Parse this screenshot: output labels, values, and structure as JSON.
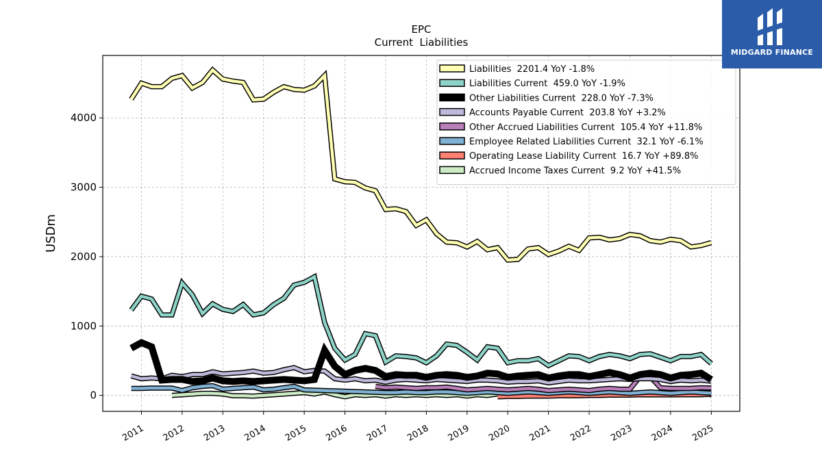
{
  "logo": {
    "text": "MIDGARD FINANCE"
  },
  "chart_data": {
    "type": "line",
    "title": "EPC",
    "subtitle": "Current  Liabilities",
    "ylabel": "USDm",
    "xlabel": "",
    "ylim": [
      -230,
      4900
    ],
    "xlim": [
      2010.05,
      2025.7
    ],
    "yticks": [
      0,
      1000,
      2000,
      3000,
      4000
    ],
    "xticks": [
      2011,
      2012,
      2013,
      2014,
      2015,
      2016,
      2017,
      2018,
      2019,
      2020,
      2021,
      2022,
      2023,
      2024,
      2025
    ],
    "grid": true,
    "legend_position": "top-right",
    "series": [
      {
        "name": "Liabilities  2201.4 YoY -1.8%",
        "color": "#ffffb3",
        "x": [
          2010.75,
          2011.0,
          2011.25,
          2011.5,
          2011.75,
          2012.0,
          2012.25,
          2012.5,
          2012.75,
          2013.0,
          2013.25,
          2013.5,
          2013.75,
          2014.0,
          2014.25,
          2014.5,
          2014.75,
          2015.0,
          2015.25,
          2015.5,
          2015.75,
          2016.0,
          2016.25,
          2016.5,
          2016.75,
          2017.0,
          2017.25,
          2017.5,
          2017.75,
          2018.0,
          2018.25,
          2018.5,
          2018.75,
          2019.0,
          2019.25,
          2019.5,
          2019.75,
          2020.0,
          2020.25,
          2020.5,
          2020.75,
          2021.0,
          2021.25,
          2021.5,
          2021.75,
          2022.0,
          2022.25,
          2022.5,
          2022.75,
          2023.0,
          2023.25,
          2023.5,
          2023.75,
          2024.0,
          2024.25,
          2024.5,
          2024.75,
          2025.0
        ],
        "values": [
          4270,
          4500,
          4450,
          4450,
          4570,
          4610,
          4430,
          4510,
          4690,
          4560,
          4530,
          4510,
          4260,
          4270,
          4370,
          4450,
          4410,
          4400,
          4460,
          4610,
          3120,
          3080,
          3070,
          2990,
          2950,
          2680,
          2690,
          2650,
          2450,
          2530,
          2330,
          2210,
          2200,
          2140,
          2220,
          2100,
          2130,
          1950,
          1960,
          2110,
          2130,
          2030,
          2080,
          2150,
          2090,
          2270,
          2280,
          2240,
          2260,
          2320,
          2300,
          2230,
          2210,
          2250,
          2230,
          2140,
          2160,
          2201.4
        ]
      },
      {
        "name": "Liabilities Current  459.0 YoY -1.9%",
        "color": "#8dd3c7",
        "x": [
          2010.75,
          2011.0,
          2011.25,
          2011.5,
          2011.75,
          2012.0,
          2012.25,
          2012.5,
          2012.75,
          2013.0,
          2013.25,
          2013.5,
          2013.75,
          2014.0,
          2014.25,
          2014.5,
          2014.75,
          2015.0,
          2015.25,
          2015.5,
          2015.75,
          2016.0,
          2016.25,
          2016.5,
          2016.75,
          2017.0,
          2017.25,
          2017.5,
          2017.75,
          2018.0,
          2018.25,
          2018.5,
          2018.75,
          2019.0,
          2019.25,
          2019.5,
          2019.75,
          2020.0,
          2020.25,
          2020.5,
          2020.75,
          2021.0,
          2021.25,
          2021.5,
          2021.75,
          2022.0,
          2022.25,
          2022.5,
          2022.75,
          2023.0,
          2023.25,
          2023.5,
          2023.75,
          2024.0,
          2024.25,
          2024.5,
          2024.75,
          2025.0
        ],
        "values": [
          1230,
          1430,
          1390,
          1160,
          1160,
          1620,
          1450,
          1180,
          1320,
          1240,
          1210,
          1310,
          1160,
          1190,
          1310,
          1400,
          1590,
          1630,
          1710,
          1050,
          680,
          510,
          590,
          890,
          860,
          480,
          570,
          560,
          540,
          470,
          570,
          740,
          720,
          620,
          510,
          700,
          680,
          470,
          500,
          500,
          530,
          430,
          500,
          570,
          560,
          500,
          560,
          590,
          570,
          530,
          590,
          600,
          550,
          500,
          560,
          560,
          590,
          459
        ]
      },
      {
        "name": "Other Liabilities Current  228.0 YoY -7.3%",
        "color": "#000000",
        "x": [
          2010.75,
          2011.0,
          2011.25,
          2011.5,
          2011.75,
          2012.0,
          2012.25,
          2012.5,
          2012.75,
          2013.0,
          2013.25,
          2013.5,
          2013.75,
          2014.0,
          2014.25,
          2014.5,
          2014.75,
          2015.0,
          2015.25,
          2015.5,
          2015.75,
          2016.0,
          2016.25,
          2016.5,
          2016.75,
          2017.0,
          2017.25,
          2017.5,
          2017.75,
          2018.0,
          2018.25,
          2018.5,
          2018.75,
          2019.0,
          2019.25,
          2019.5,
          2019.75,
          2020.0,
          2020.25,
          2020.5,
          2020.75,
          2021.0,
          2021.25,
          2021.5,
          2021.75,
          2022.0,
          2022.25,
          2022.5,
          2022.75,
          2023.0,
          2023.25,
          2023.5,
          2023.75,
          2024.0,
          2024.25,
          2024.5,
          2024.75,
          2025.0
        ],
        "values": [
          680,
          760,
          700,
          220,
          230,
          230,
          200,
          210,
          250,
          210,
          200,
          210,
          200,
          210,
          220,
          230,
          220,
          210,
          230,
          650,
          420,
          300,
          360,
          390,
          360,
          270,
          300,
          290,
          290,
          260,
          290,
          300,
          290,
          260,
          280,
          320,
          310,
          260,
          280,
          290,
          300,
          250,
          280,
          300,
          300,
          270,
          300,
          330,
          300,
          250,
          300,
          320,
          300,
          250,
          290,
          300,
          320,
          228
        ]
      },
      {
        "name": "Accounts Payable Current  203.8 YoY +3.2%",
        "color": "#bebada",
        "x": [
          2010.75,
          2011.0,
          2011.25,
          2011.5,
          2011.75,
          2012.0,
          2012.25,
          2012.5,
          2012.75,
          2013.0,
          2013.25,
          2013.5,
          2013.75,
          2014.0,
          2014.25,
          2014.5,
          2014.75,
          2015.0,
          2015.25,
          2015.5,
          2015.75,
          2016.0,
          2016.25,
          2016.5,
          2016.75,
          2017.0,
          2017.25,
          2017.5,
          2017.75,
          2018.0,
          2018.25,
          2018.5,
          2018.75,
          2019.0,
          2019.25,
          2019.5,
          2019.75,
          2020.0,
          2020.25,
          2020.5,
          2020.75,
          2021.0,
          2021.25,
          2021.5,
          2021.75,
          2022.0,
          2022.25,
          2022.5,
          2022.75,
          2023.0,
          2023.25,
          2023.5,
          2023.75,
          2024.0,
          2024.25,
          2024.5,
          2024.75,
          2025.0
        ],
        "values": [
          280,
          240,
          250,
          240,
          290,
          270,
          300,
          300,
          340,
          310,
          320,
          330,
          350,
          320,
          330,
          370,
          400,
          340,
          360,
          350,
          240,
          220,
          240,
          210,
          220,
          190,
          220,
          230,
          220,
          210,
          230,
          220,
          210,
          200,
          220,
          220,
          210,
          190,
          200,
          200,
          210,
          180,
          200,
          220,
          210,
          210,
          220,
          230,
          240,
          230,
          240,
          240,
          230,
          200,
          220,
          210,
          220,
          203.8
        ]
      },
      {
        "name": "Other Accrued Liabilities Current  105.4 YoY +11.8%",
        "color": "#b97fb9",
        "x": [
          2016.75,
          2017.0,
          2017.25,
          2017.5,
          2017.75,
          2018.0,
          2018.25,
          2018.5,
          2018.75,
          2019.0,
          2019.25,
          2019.5,
          2019.75,
          2020.0,
          2020.25,
          2020.5,
          2020.75,
          2021.0,
          2021.25,
          2021.5,
          2021.75,
          2022.0,
          2022.25,
          2022.5,
          2022.75,
          2023.0,
          2023.25,
          2023.5,
          2023.75,
          2024.0,
          2024.25,
          2024.5,
          2024.75,
          2025.0
        ],
        "values": [
          130,
          110,
          120,
          110,
          100,
          110,
          110,
          120,
          100,
          80,
          90,
          100,
          90,
          80,
          90,
          100,
          90,
          70,
          80,
          90,
          80,
          70,
          90,
          100,
          90,
          90,
          270,
          270,
          110,
          100,
          100,
          100,
          110,
          105.4
        ]
      },
      {
        "name": "Employee Related Liabilities Current  32.1 YoY -6.1%",
        "color": "#80b1d3",
        "x": [
          2010.75,
          2011.0,
          2011.25,
          2011.5,
          2011.75,
          2012.0,
          2012.25,
          2012.5,
          2012.75,
          2013.0,
          2013.25,
          2013.5,
          2013.75,
          2014.0,
          2014.25,
          2014.5,
          2014.75,
          2015.0,
          2017.0,
          2017.25,
          2017.5,
          2017.75,
          2018.0,
          2018.25,
          2018.5,
          2018.75,
          2019.0,
          2019.25,
          2019.5,
          2019.75,
          2020.0,
          2020.25,
          2020.5,
          2020.75,
          2021.0,
          2021.25,
          2021.5,
          2021.75,
          2022.0,
          2022.25,
          2022.5,
          2022.75,
          2023.0,
          2023.25,
          2023.5,
          2023.75,
          2024.0,
          2024.25,
          2024.5,
          2024.75,
          2025.0
        ],
        "values": [
          100,
          100,
          105,
          105,
          105,
          70,
          110,
          130,
          140,
          90,
          100,
          110,
          120,
          80,
          90,
          110,
          130,
          80,
          40,
          40,
          50,
          40,
          40,
          50,
          50,
          40,
          30,
          40,
          50,
          40,
          30,
          40,
          50,
          40,
          30,
          40,
          50,
          40,
          30,
          40,
          50,
          40,
          30,
          40,
          50,
          40,
          30,
          40,
          50,
          40,
          32.1
        ]
      },
      {
        "name": "Operating Lease Liability Current  16.7 YoY +89.8%",
        "color": "#fb8072",
        "x": [
          2019.75,
          2020.0,
          2020.25,
          2020.5,
          2020.75,
          2021.0,
          2021.25,
          2021.5,
          2021.75,
          2022.0,
          2022.25,
          2022.5,
          2022.75,
          2023.0,
          2023.25,
          2023.5,
          2023.75,
          2024.0,
          2024.25,
          2024.5,
          2024.75,
          2025.0
        ],
        "values": [
          -20,
          -15,
          -15,
          -10,
          -10,
          -10,
          -5,
          -5,
          -5,
          0,
          0,
          5,
          5,
          5,
          10,
          8,
          8,
          8,
          9,
          9,
          9,
          16.7
        ]
      },
      {
        "name": "Accrued Income Taxes Current  9.2 YoY +41.5%",
        "color": "#ccebc5",
        "x": [
          2011.75,
          2012.0,
          2012.25,
          2012.5,
          2012.75,
          2013.0,
          2013.25,
          2013.5,
          2013.75,
          2014.0,
          2014.25,
          2014.5,
          2014.75,
          2015.0,
          2015.25,
          2015.5,
          2015.75,
          2016.0,
          2016.25,
          2016.5,
          2016.75,
          2017.0,
          2017.25,
          2017.5,
          2017.75,
          2018.0,
          2018.25,
          2018.5,
          2018.75,
          2019.0,
          2019.25,
          2019.5,
          2019.75,
          2020.0,
          2020.25,
          2020.5,
          2020.75,
          2021.0,
          2021.25,
          2021.5,
          2021.75,
          2022.0,
          2022.25,
          2022.5,
          2022.75,
          2023.0,
          2023.25,
          2023.5,
          2023.75,
          2024.0,
          2024.25,
          2024.5,
          2024.75,
          2025.0
        ],
        "values": [
          0,
          10,
          20,
          30,
          30,
          20,
          -5,
          -5,
          -10,
          0,
          10,
          20,
          30,
          40,
          20,
          50,
          10,
          -20,
          10,
          0,
          10,
          -10,
          10,
          0,
          10,
          0,
          10,
          0,
          10,
          -10,
          10,
          0,
          20,
          10,
          10,
          10,
          0,
          0,
          10,
          10,
          0,
          0,
          10,
          20,
          10,
          10,
          20,
          20,
          10,
          10,
          20,
          10,
          30,
          9.2
        ]
      }
    ]
  }
}
